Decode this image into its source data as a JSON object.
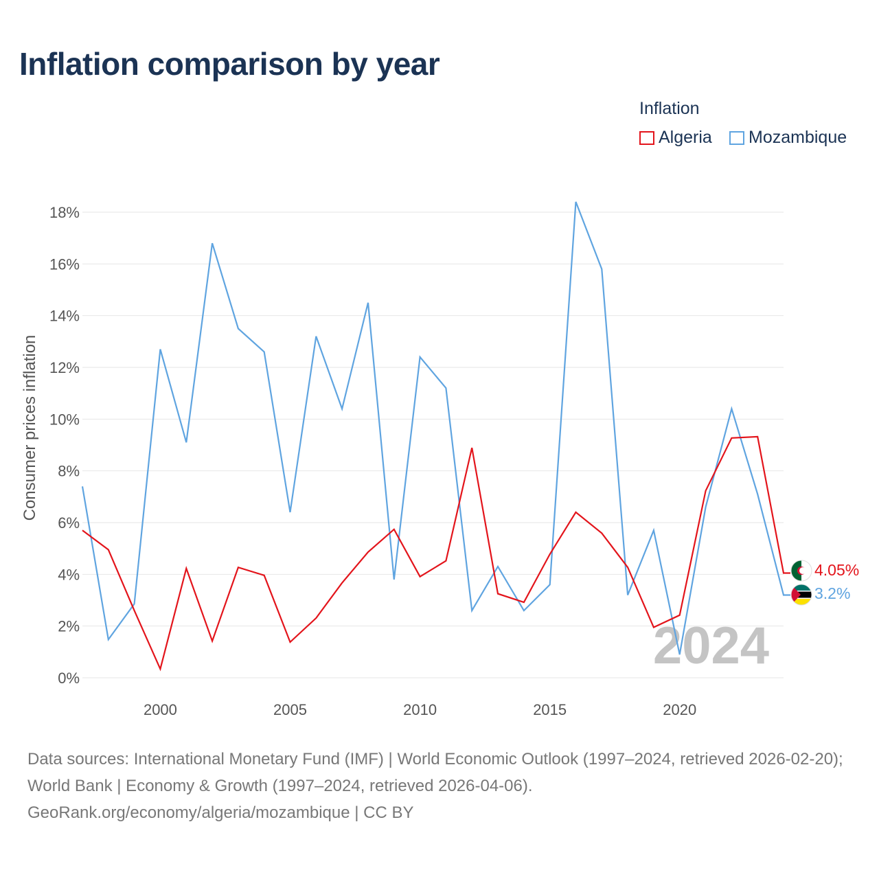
{
  "title": "Inflation comparison by year",
  "legend": {
    "title": "Inflation",
    "items": [
      {
        "name": "Algeria",
        "color": "#e3141b"
      },
      {
        "name": "Mozambique",
        "color": "#5fa4e0"
      }
    ]
  },
  "chart_data": {
    "type": "line",
    "title": "Inflation comparison by year",
    "xlabel": "",
    "ylabel": "Consumer prices inflation",
    "xlim": [
      1997,
      2024
    ],
    "ylim": [
      0,
      18
    ],
    "y_ticks": [
      0,
      2,
      4,
      6,
      8,
      10,
      12,
      14,
      16,
      18
    ],
    "y_tick_labels": [
      "0%",
      "2%",
      "4%",
      "6%",
      "8%",
      "10%",
      "12%",
      "14%",
      "16%",
      "18%"
    ],
    "x_ticks": [
      2000,
      2005,
      2010,
      2015,
      2020
    ],
    "x_tick_labels": [
      "2000",
      "2005",
      "2010",
      "2015",
      "2020"
    ],
    "grid": true,
    "legend_position": "top-right",
    "x": [
      1997,
      1998,
      1999,
      2000,
      2001,
      2002,
      2003,
      2004,
      2005,
      2006,
      2007,
      2008,
      2009,
      2010,
      2011,
      2012,
      2013,
      2014,
      2015,
      2016,
      2017,
      2018,
      2019,
      2020,
      2021,
      2022,
      2023,
      2024
    ],
    "series": [
      {
        "name": "Algeria",
        "color": "#e3141b",
        "values": [
          5.7,
          4.95,
          2.6,
          0.34,
          4.23,
          1.42,
          4.27,
          3.96,
          1.38,
          2.31,
          3.67,
          4.86,
          5.74,
          3.91,
          4.52,
          8.89,
          3.25,
          2.92,
          4.78,
          6.4,
          5.59,
          4.27,
          1.95,
          2.42,
          7.23,
          9.27,
          9.32,
          4.05
        ],
        "end_label": "4.05%",
        "flag": "algeria-flag-icon"
      },
      {
        "name": "Mozambique",
        "color": "#5fa4e0",
        "values": [
          7.4,
          1.48,
          2.86,
          12.7,
          9.1,
          16.8,
          13.5,
          12.6,
          6.4,
          13.2,
          10.4,
          14.5,
          3.8,
          12.4,
          11.2,
          2.6,
          4.3,
          2.6,
          3.6,
          18.4,
          15.8,
          3.2,
          5.7,
          0.9,
          6.6,
          10.4,
          7.1,
          3.2
        ],
        "end_label": "3.2%",
        "flag": "mozambique-flag-icon"
      }
    ],
    "watermark_year": "2024"
  },
  "footer": {
    "line1": "Data sources: International Monetary Fund (IMF) | World Economic Outlook (1997–2024, retrieved 2026-02-20); World Bank | Economy & Growth (1997–2024, retrieved 2026-04-06).",
    "line2": "GeoRank.org/economy/algeria/mozambique | CC BY"
  }
}
